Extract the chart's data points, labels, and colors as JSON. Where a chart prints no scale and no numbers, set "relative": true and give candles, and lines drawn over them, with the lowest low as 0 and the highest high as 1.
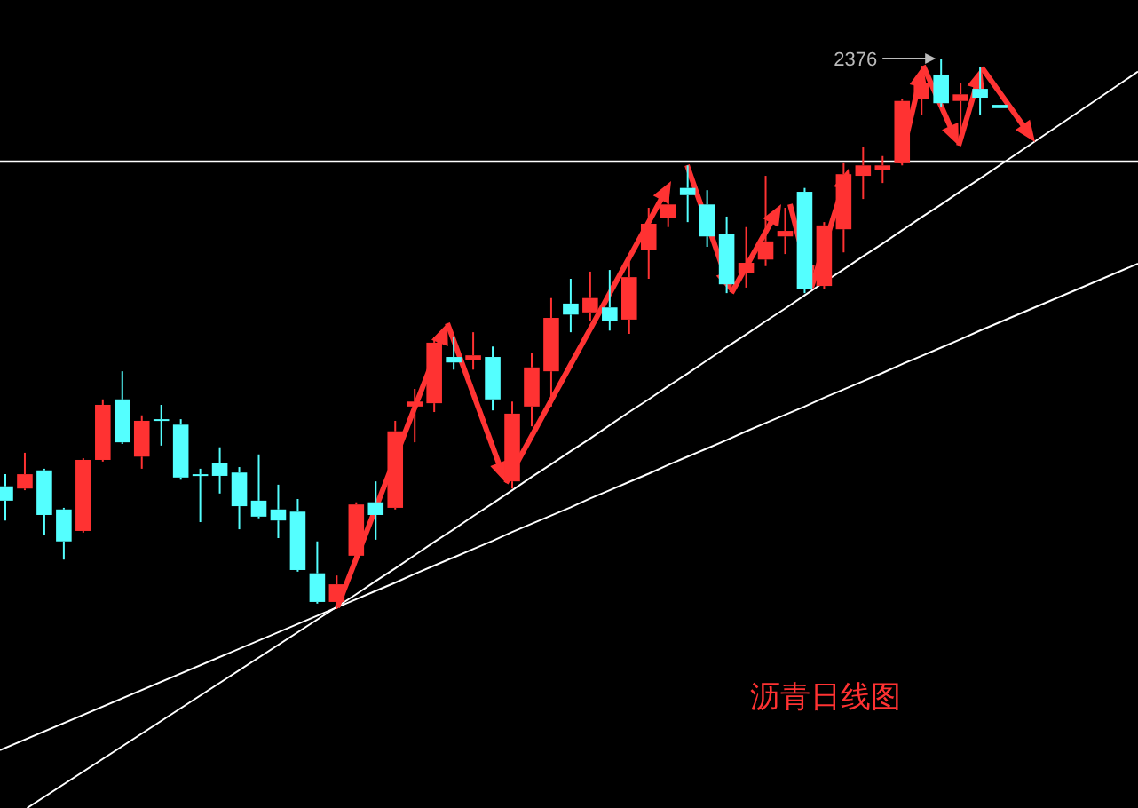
{
  "chart_data": {
    "type": "candlestick",
    "relative": true,
    "title": "沥青日线图",
    "categories": [
      null,
      null,
      null,
      null,
      null,
      null,
      null,
      null,
      null,
      null,
      null,
      null,
      null,
      null,
      null,
      null,
      null,
      null,
      null,
      null,
      null,
      null,
      null,
      null,
      null,
      null,
      null,
      null,
      null,
      null,
      null,
      null,
      null,
      null,
      null,
      null,
      null,
      null,
      null,
      null,
      null,
      null,
      null,
      null,
      null,
      null,
      null,
      null,
      null,
      null,
      null,
      null
    ],
    "ohlc": [
      [
        0.223,
        0.245,
        0.161,
        0.197
      ],
      [
        0.219,
        0.284,
        0.216,
        0.245
      ],
      [
        0.252,
        0.255,
        0.135,
        0.171
      ],
      [
        0.181,
        0.184,
        0.09,
        0.123
      ],
      [
        0.142,
        0.274,
        0.139,
        0.271
      ],
      [
        0.271,
        0.381,
        0.268,
        0.371
      ],
      [
        0.381,
        0.432,
        0.3,
        0.303
      ],
      [
        0.277,
        0.352,
        0.255,
        0.342
      ],
      [
        0.345,
        0.371,
        0.297,
        0.342
      ],
      [
        0.335,
        0.345,
        0.235,
        0.239
      ],
      [
        0.245,
        0.255,
        0.158,
        0.242
      ],
      [
        0.265,
        0.294,
        0.21,
        0.242
      ],
      [
        0.248,
        0.258,
        0.145,
        0.187
      ],
      [
        0.197,
        0.281,
        0.165,
        0.168
      ],
      [
        0.181,
        0.226,
        0.129,
        0.161
      ],
      [
        0.177,
        0.2,
        0.068,
        0.071
      ],
      [
        0.065,
        0.123,
        0.01,
        0.013
      ],
      [
        0.013,
        0.061,
        0,
        0.045
      ],
      [
        0.097,
        0.194,
        0.09,
        0.19
      ],
      [
        0.194,
        0.232,
        0.126,
        0.171
      ],
      [
        0.184,
        0.342,
        0.181,
        0.323
      ],
      [
        0.368,
        0.4,
        0.303,
        0.377
      ],
      [
        0.374,
        0.494,
        0.358,
        0.484
      ],
      [
        0.458,
        0.494,
        0.435,
        0.448
      ],
      [
        0.452,
        0.503,
        0.435,
        0.461
      ],
      [
        0.458,
        0.477,
        0.361,
        0.381
      ],
      [
        0.232,
        0.377,
        0.219,
        0.355
      ],
      [
        0.368,
        0.465,
        0.332,
        0.439
      ],
      [
        0.432,
        0.565,
        0.368,
        0.529
      ],
      [
        0.555,
        0.6,
        0.503,
        0.535
      ],
      [
        0.539,
        0.613,
        0.523,
        0.565
      ],
      [
        0.548,
        0.616,
        0.506,
        0.523
      ],
      [
        0.526,
        0.632,
        0.5,
        0.603
      ],
      [
        0.652,
        0.729,
        0.6,
        0.7
      ],
      [
        0.71,
        0.768,
        0.694,
        0.735
      ],
      [
        0.765,
        0.806,
        0.703,
        0.752
      ],
      [
        0.735,
        0.761,
        0.658,
        0.677
      ],
      [
        0.681,
        0.713,
        0.574,
        0.59
      ],
      [
        0.61,
        0.694,
        0.584,
        0.629
      ],
      [
        0.635,
        0.787,
        0.623,
        0.668
      ],
      [
        0.677,
        0.729,
        0.645,
        0.687
      ],
      [
        0.758,
        0.765,
        0.574,
        0.581
      ],
      [
        0.587,
        0.703,
        0.581,
        0.697
      ],
      [
        0.69,
        0.81,
        0.648,
        0.79
      ],
      [
        0.787,
        0.839,
        0.745,
        0.806
      ],
      [
        0.797,
        0.823,
        0.774,
        0.806
      ],
      [
        0.81,
        0.926,
        0.806,
        0.923
      ],
      [
        0.926,
        0.987,
        0.897,
        0.955
      ],
      [
        0.971,
        1,
        0.913,
        0.919
      ],
      [
        0.923,
        0.955,
        0.848,
        0.935
      ],
      [
        0.945,
        0.984,
        0.897,
        0.929
      ],
      [
        0.916,
        0.916,
        0.91,
        0.91
      ]
    ],
    "series": [
      {
        "type": "line",
        "color": "#ffffff",
        "values": [
          null,
          null,
          null,
          null,
          null,
          null,
          null,
          null,
          null,
          null,
          null,
          null,
          null,
          null,
          null,
          null,
          null,
          0.004,
          0.027,
          0.051,
          0.074,
          0.098,
          0.122,
          0.145,
          0.169,
          0.192,
          0.216,
          0.24,
          0.263,
          0.287,
          0.31,
          0.334,
          0.358,
          0.381,
          0.405,
          0.428,
          0.452,
          0.476,
          0.499,
          0.523,
          0.546,
          0.57,
          0.594,
          0.617,
          0.641,
          0.664,
          0.688,
          0.712,
          0.735,
          0.759,
          0.782,
          0.806
        ]
      },
      {
        "type": "line",
        "color": "#ffffff",
        "values": [
          null,
          null,
          null,
          null,
          null,
          null,
          null,
          null,
          null,
          null,
          null,
          null,
          null,
          null,
          null,
          null,
          null,
          0.003,
          0.018,
          0.033,
          0.048,
          0.064,
          0.079,
          0.094,
          0.109,
          0.124,
          0.14,
          0.155,
          0.17,
          0.185,
          0.201,
          0.216,
          0.231,
          0.246,
          0.262,
          0.277,
          0.292,
          0.307,
          0.323,
          0.338,
          0.353,
          0.368,
          0.384,
          0.399,
          0.414,
          0.429,
          0.445,
          0.46,
          0.475,
          0.49,
          0.506,
          0.521
        ]
      }
    ],
    "ref_lines": [
      {
        "axis": "y",
        "value": 0.813,
        "color": "#ffffff"
      }
    ],
    "annotations": [
      "2376"
    ]
  }
}
